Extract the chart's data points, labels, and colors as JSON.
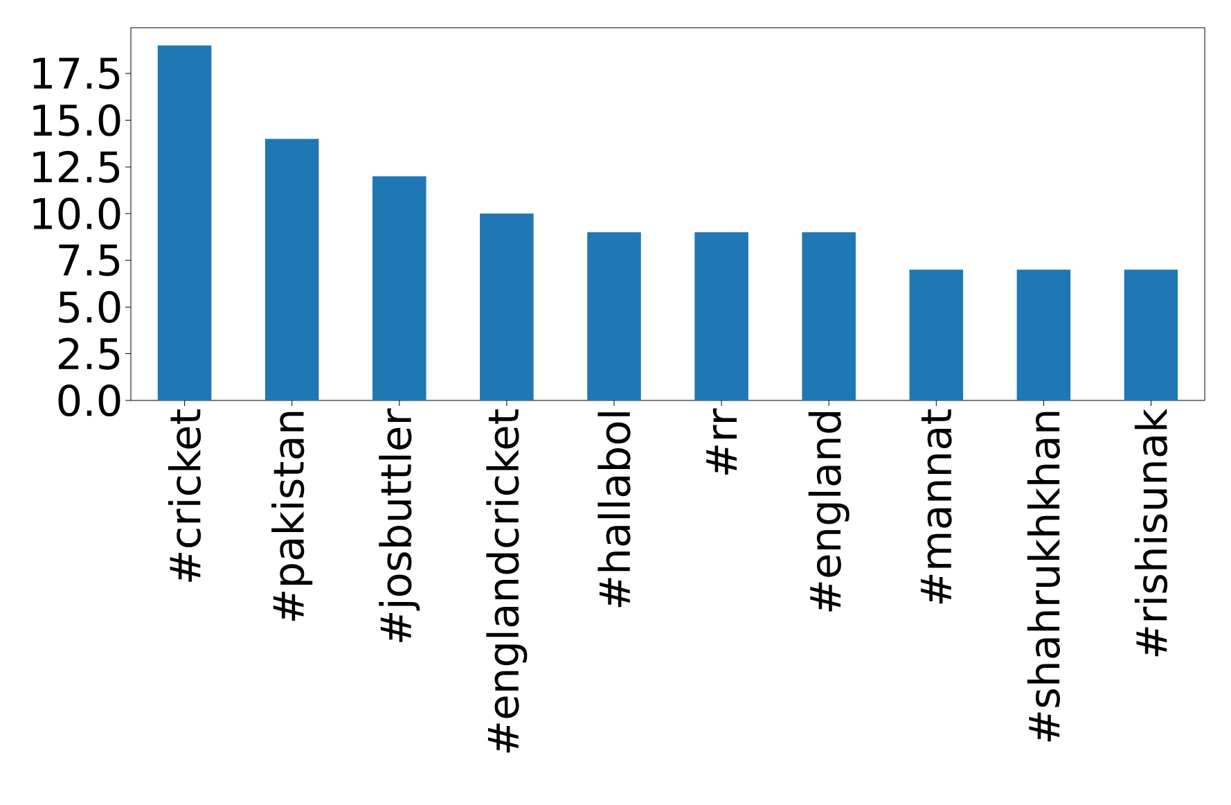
{
  "chart_data": {
    "type": "bar",
    "categories": [
      "#cricket",
      "#pakistan",
      "#josbuttler",
      "#englandcricket",
      "#hallabol",
      "#rr",
      "#england",
      "#mannat",
      "#shahrukhkhan",
      "#rishisunak"
    ],
    "values": [
      19,
      14,
      12,
      10,
      9,
      9,
      9,
      7,
      7,
      7
    ],
    "color": "#1f77b4",
    "ylim": [
      0,
      19.95
    ],
    "yticks": [
      {
        "value": 0,
        "label": "0.0"
      },
      2.5,
      {
        "value": 5,
        "label": "5.0"
      },
      7.5,
      {
        "value": 10,
        "label": "10.0"
      },
      12.5,
      {
        "value": 15,
        "label": "15.0"
      },
      17.5
    ]
  }
}
